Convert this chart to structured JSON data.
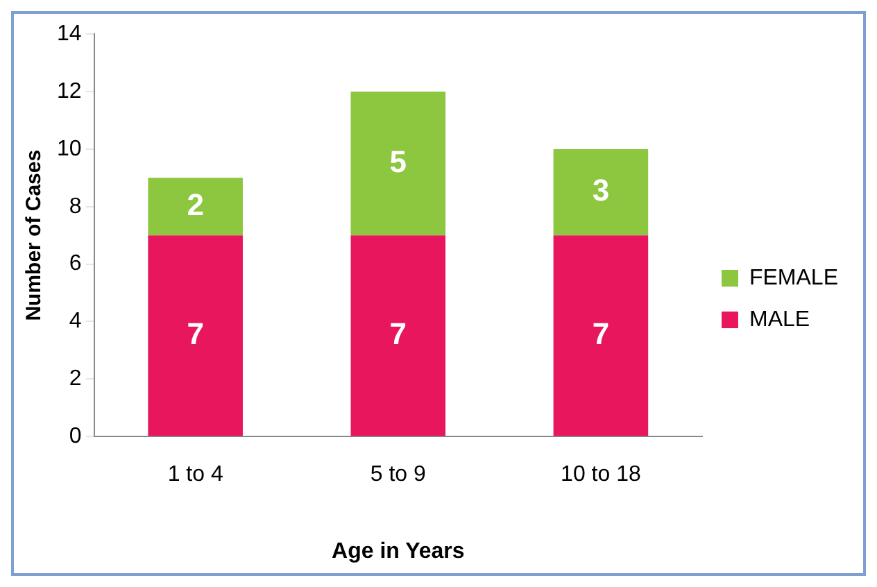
{
  "chart_data": {
    "type": "bar",
    "stacked": true,
    "xlabel": "Age in Years",
    "ylabel": "Number of Cases",
    "categories": [
      "1 to 4",
      "5 to 9",
      "10 to 18"
    ],
    "series": [
      {
        "name": "MALE",
        "color": "#e8175d",
        "values": [
          7,
          7,
          7
        ]
      },
      {
        "name": "FEMALE",
        "color": "#8dc63f",
        "values": [
          2,
          5,
          3
        ]
      }
    ],
    "ylim": [
      0,
      14
    ],
    "yticks": [
      0,
      2,
      4,
      6,
      8,
      10,
      12,
      14
    ],
    "grid": false,
    "legend": "right",
    "data_labels": true
  }
}
